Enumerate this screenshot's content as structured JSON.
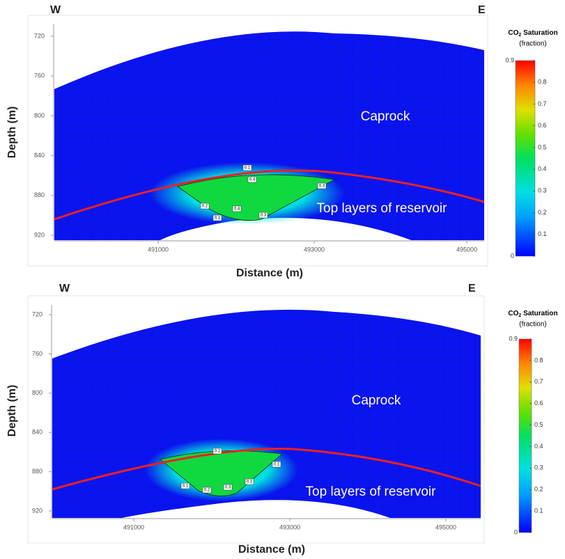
{
  "panels": [
    {
      "west": "W",
      "east": "E",
      "y_label": "Depth (m)",
      "x_label": "Distance (m)",
      "y_ticks": [
        "720",
        "760",
        "800",
        "840",
        "880",
        "920"
      ],
      "x_ticks": [
        "491000",
        "493000",
        "495000"
      ],
      "annotations": [
        "Caprock",
        "Top layers of reservoir"
      ],
      "contour_labels": [
        "0.1",
        "0.4",
        "0.3",
        "0.2",
        "0.1",
        "0.4",
        "0.3"
      ],
      "colorbar": {
        "title_prefix": "CO",
        "title_sub": "2",
        "title_suffix": " Saturation",
        "subtitle": "(fraction)",
        "ticks": [
          "0.9",
          "0.8",
          "0.7",
          "0.6",
          "0.5",
          "0.4",
          "0.3",
          "0.2",
          "0.1",
          "0"
        ]
      }
    },
    {
      "west": "W",
      "east": "E",
      "y_label": "Depth (m)",
      "x_label": "Distance (m)",
      "y_ticks": [
        "720",
        "760",
        "800",
        "840",
        "880",
        "920"
      ],
      "x_ticks": [
        "491000",
        "493000",
        "495000"
      ],
      "annotations": [
        "Caprock",
        "Top layers of reservoir"
      ],
      "contour_labels": [
        "0.2",
        "0.1",
        "0.1",
        "0.2",
        "0.3",
        "0.1"
      ],
      "colorbar": {
        "title_prefix": "CO",
        "title_sub": "2",
        "title_suffix": " Saturation",
        "subtitle": "(fraction)",
        "ticks": [
          "0.9",
          "0.8",
          "0.7",
          "0.6",
          "0.5",
          "0.4",
          "0.3",
          "0.2",
          "0.1",
          "0"
        ]
      }
    }
  ]
}
